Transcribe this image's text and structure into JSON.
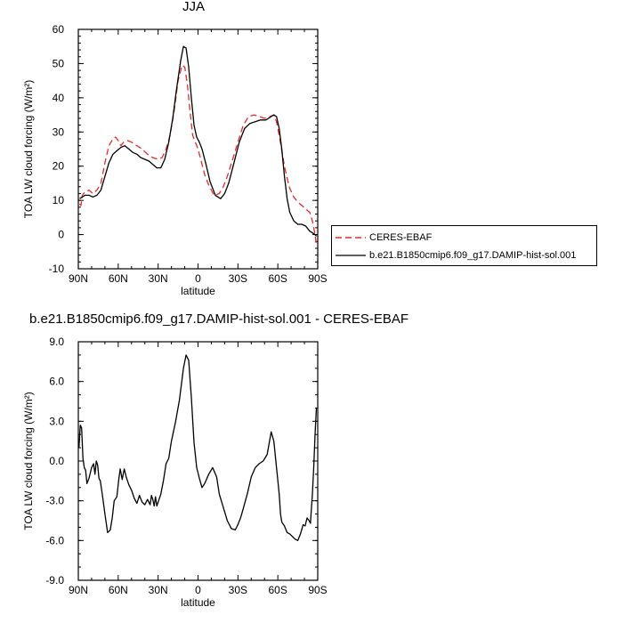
{
  "chart_data": [
    {
      "type": "line",
      "title": "JJA",
      "xlabel": "latitude",
      "ylabel": "TOA LW cloud forcing (W/m²)",
      "xlim": [
        90,
        -90
      ],
      "ylim": [
        -10,
        60
      ],
      "x_ticks": [
        90,
        60,
        30,
        0,
        -30,
        -60,
        -90
      ],
      "x_tick_labels": [
        "90N",
        "60N",
        "30N",
        "0",
        "30S",
        "60S",
        "90S"
      ],
      "y_ticks": [
        -10,
        0,
        10,
        20,
        30,
        40,
        50,
        60
      ],
      "y_tick_labels": [
        "-10",
        "0",
        "10",
        "20",
        "30",
        "40",
        "50",
        "60"
      ],
      "legend_position": "right",
      "series": [
        {
          "name": "CERES-EBAF",
          "color": "#e8282a",
          "dash": "dashed",
          "x": [
            89,
            88,
            87,
            85,
            82,
            79,
            76,
            73,
            70,
            67,
            64,
            62,
            60,
            58,
            56,
            53,
            50,
            46,
            42,
            38,
            34,
            30,
            27,
            24,
            21,
            18,
            15,
            12,
            10,
            8,
            6,
            4,
            2,
            0,
            -2,
            -5,
            -8,
            -12,
            -16,
            -19,
            -22,
            -26,
            -30,
            -34,
            -38,
            -42,
            -46,
            -50,
            -54,
            -57,
            -59,
            -61,
            -63,
            -65,
            -67,
            -69,
            -72,
            -75,
            -78,
            -81,
            -84,
            -86,
            -88,
            -89
          ],
          "y": [
            9,
            8.5,
            11.5,
            12.5,
            13,
            12,
            13,
            15,
            21,
            26,
            28,
            28.5,
            27.5,
            26,
            27,
            27.5,
            27,
            26,
            25,
            23.5,
            22.5,
            22,
            22.5,
            25,
            29,
            36,
            45,
            49.5,
            49,
            44,
            36,
            29,
            27,
            25,
            22,
            17.5,
            14.5,
            11.5,
            12,
            14,
            17,
            22,
            27,
            32,
            34.5,
            35,
            34.5,
            34,
            34.5,
            35,
            33,
            29,
            24.5,
            20,
            16.5,
            13.5,
            11,
            9.5,
            8.5,
            7.5,
            6.5,
            4,
            0,
            -3
          ]
        },
        {
          "name": "b.e21.B1850cmip6.f09_g17.DAMIP-hist-sol.001",
          "color": "#000000",
          "dash": "solid",
          "x": [
            89,
            87,
            85,
            82,
            79,
            76,
            73,
            70,
            67,
            64,
            61,
            58,
            55,
            52,
            49,
            46,
            43,
            40,
            37,
            34,
            31,
            28,
            25,
            22,
            19,
            16,
            13,
            11,
            9,
            7,
            5,
            3,
            1,
            -1,
            -3,
            -6,
            -9,
            -13,
            -17,
            -20,
            -23,
            -27,
            -31,
            -35,
            -39,
            -43,
            -47,
            -51,
            -55,
            -57,
            -59,
            -61,
            -63,
            -65,
            -67,
            -69,
            -72,
            -75,
            -78,
            -81,
            -84,
            -86,
            -88,
            -89
          ],
          "y": [
            10.5,
            11,
            11.5,
            11.5,
            11,
            11.5,
            13,
            17,
            21,
            23.5,
            24.5,
            25.5,
            26,
            25,
            24,
            23.5,
            22.5,
            22,
            21.5,
            20.5,
            19.5,
            19.5,
            22,
            27,
            34,
            43,
            51,
            55,
            54.5,
            49,
            40,
            32,
            28.5,
            27,
            25,
            20.5,
            15.5,
            11.5,
            10.5,
            12,
            15,
            21,
            27,
            31,
            32.5,
            33,
            33.5,
            33.5,
            34.5,
            35,
            34.5,
            31,
            25,
            17,
            10.5,
            6.5,
            4,
            3,
            3,
            2.5,
            1,
            0.5,
            0,
            -0.5
          ]
        }
      ]
    },
    {
      "type": "line",
      "title": "b.e21.B1850cmip6.f09_g17.DAMIP-hist-sol.001 - CERES-EBAF",
      "xlabel": "latitude",
      "ylabel": "TOA LW cloud forcing (W/m²)",
      "xlim": [
        90,
        -90
      ],
      "ylim": [
        -9,
        9
      ],
      "x_ticks": [
        90,
        60,
        30,
        0,
        -30,
        -60,
        -90
      ],
      "x_tick_labels": [
        "90N",
        "60N",
        "30N",
        "0",
        "30S",
        "60S",
        "90S"
      ],
      "y_ticks": [
        -9,
        -6,
        -3,
        0,
        3,
        6,
        9
      ],
      "y_tick_labels": [
        "-9.0",
        "-6.0",
        "-3.0",
        "0.0",
        "3.0",
        "6.0",
        "9.0"
      ],
      "series": [
        {
          "color": "#000000",
          "dash": "solid",
          "x": [
            89.5,
            88.5,
            87.5,
            86.5,
            85.5,
            84.5,
            83.5,
            82,
            80,
            78.5,
            77.5,
            76.5,
            75.5,
            74.5,
            73.5,
            72,
            70,
            68,
            66,
            64.5,
            63,
            61,
            59.5,
            58.5,
            57,
            55.5,
            54,
            52,
            50,
            48,
            46,
            44,
            42,
            40,
            38,
            36,
            35,
            34,
            33,
            32,
            31,
            30,
            28,
            26,
            24,
            22,
            20,
            17,
            14,
            11,
            9,
            7,
            5,
            3,
            1,
            -1,
            -3,
            -5,
            -8,
            -11,
            -14,
            -16,
            -19,
            -22,
            -25,
            -28,
            -30,
            -32,
            -34,
            -37,
            -40,
            -43,
            -46,
            -49,
            -52,
            -55,
            -57,
            -59,
            -61,
            -62,
            -63,
            -65,
            -67,
            -69,
            -71,
            -73,
            -75,
            -77,
            -79,
            -80.5,
            -82,
            -83.5,
            -84.5,
            -86,
            -87,
            -88,
            -89
          ],
          "y": [
            1,
            2.7,
            2.5,
            0.2,
            -0.5,
            -0.7,
            -1.7,
            -1.3,
            -0.5,
            -0.2,
            -1,
            0,
            -0.3,
            -1.3,
            -1.5,
            -2.5,
            -4,
            -5.4,
            -5.2,
            -4.3,
            -3,
            -2.7,
            -1.3,
            -0.6,
            -1.4,
            -0.6,
            -1.2,
            -1.8,
            -2.2,
            -2.8,
            -3.2,
            -2.6,
            -3.1,
            -3.3,
            -2.9,
            -3.3,
            -2.6,
            -2.9,
            -3.4,
            -2.7,
            -3.4,
            -3.1,
            -2.5,
            -1.5,
            -0.2,
            0.2,
            1.5,
            2.9,
            4.6,
            7,
            8,
            7.6,
            4.8,
            1.4,
            -0.5,
            -1.3,
            -2,
            -1.7,
            -1,
            -0.5,
            -1.2,
            -2.5,
            -3.5,
            -4.5,
            -5.1,
            -5.2,
            -4.8,
            -4.3,
            -3.6,
            -2.5,
            -1.2,
            -0.5,
            -0.2,
            0,
            0.5,
            2.2,
            1.5,
            -0.5,
            -2.5,
            -4,
            -4.6,
            -4.9,
            -5.4,
            -5.5,
            -5.7,
            -5.9,
            -6,
            -5.5,
            -4.8,
            -4.9,
            -4.3,
            -4.5,
            -4.7,
            -2.5,
            -0.5,
            2,
            4
          ]
        }
      ]
    }
  ]
}
